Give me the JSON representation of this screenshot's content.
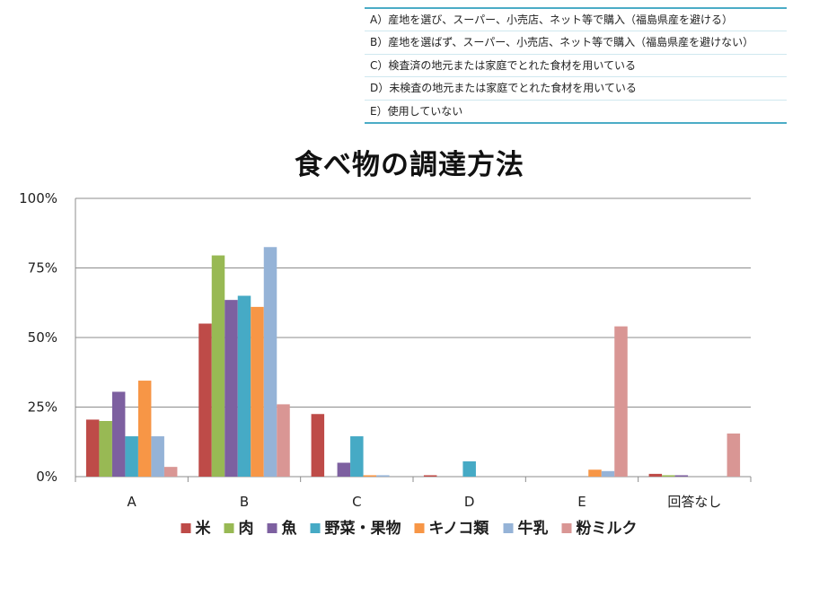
{
  "legend_table": {
    "items": [
      "A）産地を選び、スーパー、小売店、ネット等で購入（福島県産を避ける）",
      "B）産地を選ばず、スーパー、小売店、ネット等で購入（福島県産を避けない）",
      "C）検査済の地元または家庭でとれた食材を用いている",
      "D）未検査の地元または家庭でとれた食材を用いている",
      "E）使用していない"
    ]
  },
  "chart_data": {
    "type": "bar",
    "title": "食べ物の調達方法",
    "xlabel": "",
    "ylabel": "",
    "categories": [
      "A",
      "B",
      "C",
      "D",
      "E",
      "回答なし"
    ],
    "ylim": [
      0,
      100
    ],
    "yticks": [
      "0%",
      "25%",
      "50%",
      "75%",
      "100%"
    ],
    "grid": true,
    "legend_position": "bottom",
    "series": [
      {
        "name": "米",
        "color": "#be4b48",
        "values": [
          20.5,
          55.0,
          22.5,
          0.5,
          0.0,
          1.0
        ]
      },
      {
        "name": "肉",
        "color": "#98b954",
        "values": [
          20.0,
          79.5,
          0.0,
          0.0,
          0.0,
          0.5
        ]
      },
      {
        "name": "魚",
        "color": "#7d60a0",
        "values": [
          30.5,
          63.5,
          5.0,
          0.0,
          0.0,
          0.5
        ]
      },
      {
        "name": "野菜・果物",
        "color": "#46aac5",
        "values": [
          14.5,
          65.0,
          14.5,
          5.5,
          0.0,
          0.0
        ]
      },
      {
        "name": "キノコ類",
        "color": "#f79646",
        "values": [
          34.5,
          61.0,
          0.5,
          0.0,
          2.5,
          0.0
        ]
      },
      {
        "name": "牛乳",
        "color": "#95b3d7",
        "values": [
          14.5,
          82.5,
          0.5,
          0.0,
          2.0,
          0.0
        ]
      },
      {
        "name": "粉ミルク",
        "color": "#d99694",
        "values": [
          3.5,
          26.0,
          0.0,
          0.0,
          54.0,
          15.5
        ]
      }
    ]
  }
}
